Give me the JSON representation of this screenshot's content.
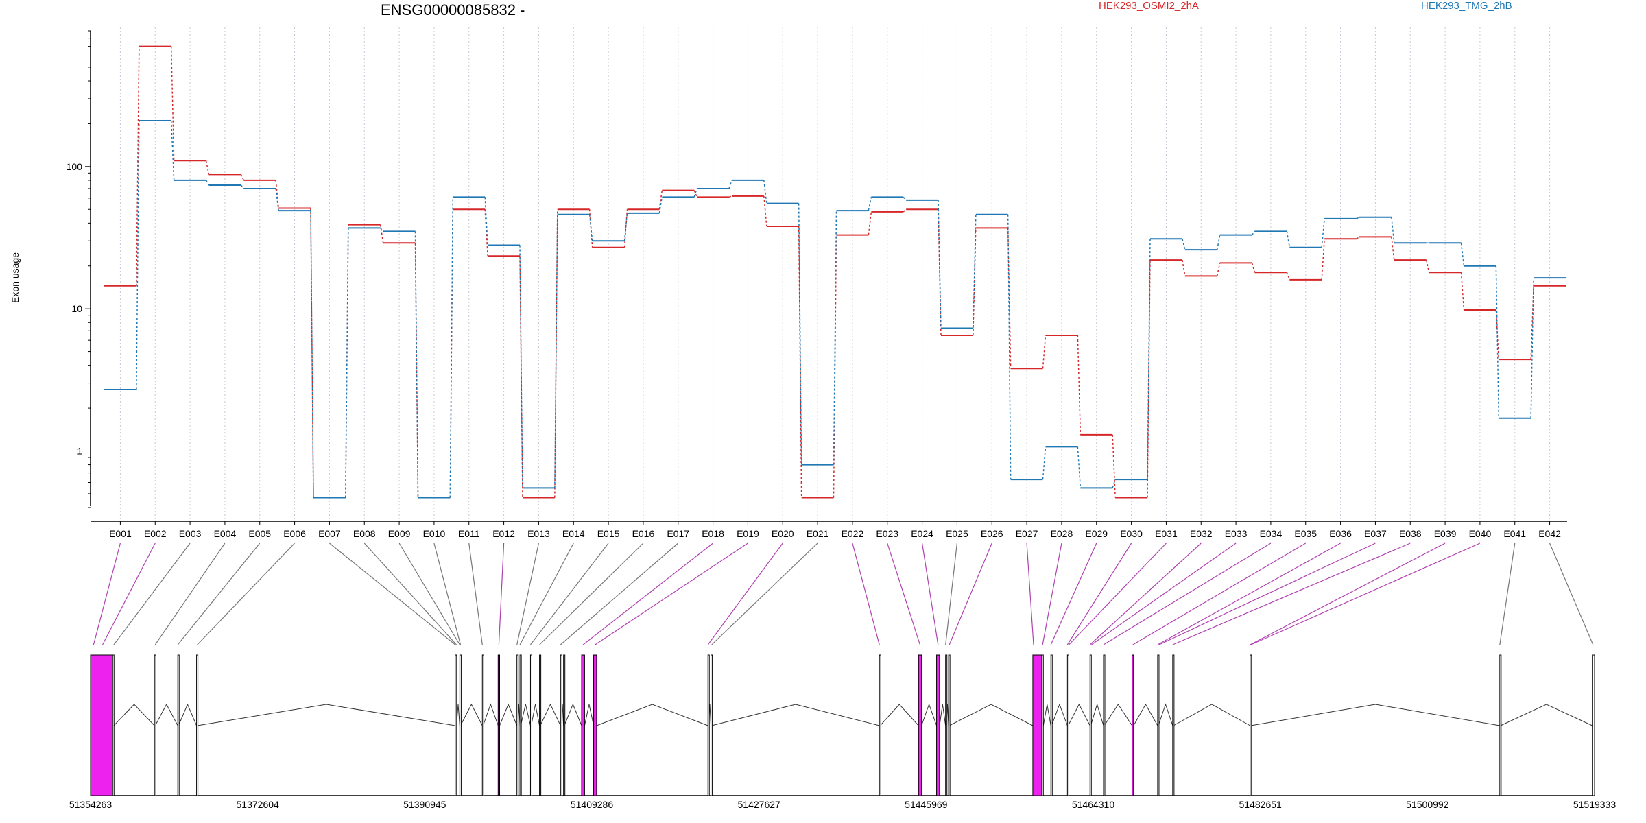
{
  "chart_data": {
    "type": "line",
    "title": "ENSG00000085832 -",
    "ylabel": "Exon usage",
    "yscale": "log",
    "ylim": [
      0.4,
      900
    ],
    "yticks": [
      "1",
      "10",
      "100"
    ],
    "ytick_values": [
      1,
      10,
      100
    ],
    "grid": "vertical dotted per exon",
    "legend_placement": "top",
    "colors": {
      "OSMI2": "#d62728",
      "TMG": "#1f77b4",
      "highlight": "#ee22ee",
      "connector": "#b040b0",
      "gray": "#777777"
    },
    "categories": [
      "E001",
      "E002",
      "E003",
      "E004",
      "E005",
      "E006",
      "E007",
      "E008",
      "E009",
      "E010",
      "E011",
      "E012",
      "E013",
      "E014",
      "E015",
      "E016",
      "E017",
      "E018",
      "E019",
      "E020",
      "E021",
      "E022",
      "E023",
      "E024",
      "E025",
      "E026",
      "E027",
      "E028",
      "E029",
      "E030",
      "E031",
      "E032",
      "E033",
      "E034",
      "E035",
      "E036",
      "E037",
      "E038",
      "E039",
      "E040",
      "E041",
      "E042"
    ],
    "series": [
      {
        "name": "HEK293_OSMI2_2hA",
        "color": "#d62728",
        "values": [
          14.5,
          700,
          110,
          88,
          80,
          51,
          0.47,
          39,
          29,
          0.47,
          50,
          23.5,
          0.47,
          50,
          27,
          50,
          68,
          61,
          62,
          38,
          0.47,
          33,
          48,
          50,
          6.5,
          37,
          3.8,
          6.5,
          1.3,
          0.47,
          22,
          17,
          21,
          18,
          16,
          31,
          32,
          22,
          18,
          9.8,
          4.4,
          14.5
        ]
      },
      {
        "name": "HEK293_TMG_2hB",
        "color": "#1f77b4",
        "values": [
          2.7,
          210,
          80,
          74,
          70,
          49,
          0.47,
          37,
          35,
          0.47,
          61,
          28,
          0.55,
          46,
          30,
          47,
          61,
          70,
          80,
          55,
          0.8,
          49,
          61,
          58,
          7.3,
          46,
          0.63,
          1.07,
          0.55,
          0.63,
          31,
          26,
          33,
          35,
          27,
          43,
          44,
          29,
          29,
          20,
          1.7,
          16.5
        ]
      }
    ],
    "gene_model": {
      "coord_ticks": [
        "51354263",
        "51372604",
        "51390945",
        "51409286",
        "51427627",
        "51445969",
        "51464310",
        "51482651",
        "51500992",
        "51519333"
      ],
      "exons": [
        {
          "start": 0.0,
          "end": 0.0147,
          "highlight": true
        },
        {
          "start": 0.0147,
          "end": 0.0155,
          "highlight": false
        },
        {
          "start": 0.0425,
          "end": 0.043,
          "highlight": false
        },
        {
          "start": 0.058,
          "end": 0.0585,
          "highlight": false
        },
        {
          "start": 0.0705,
          "end": 0.071,
          "highlight": false
        },
        {
          "start": 0.2425,
          "end": 0.2433,
          "highlight": false
        },
        {
          "start": 0.2455,
          "end": 0.246,
          "highlight": false
        },
        {
          "start": 0.2605,
          "end": 0.261,
          "highlight": false
        },
        {
          "start": 0.271,
          "end": 0.272,
          "highlight": true
        },
        {
          "start": 0.2835,
          "end": 0.284,
          "highlight": false
        },
        {
          "start": 0.2855,
          "end": 0.286,
          "highlight": false
        },
        {
          "start": 0.2925,
          "end": 0.293,
          "highlight": false
        },
        {
          "start": 0.2985,
          "end": 0.299,
          "highlight": false
        },
        {
          "start": 0.3125,
          "end": 0.313,
          "highlight": false
        },
        {
          "start": 0.3145,
          "end": 0.315,
          "highlight": false
        },
        {
          "start": 0.3265,
          "end": 0.3285,
          "highlight": true
        },
        {
          "start": 0.3345,
          "end": 0.3365,
          "highlight": true
        },
        {
          "start": 0.4105,
          "end": 0.411,
          "highlight": false
        },
        {
          "start": 0.4125,
          "end": 0.413,
          "highlight": false
        },
        {
          "start": 0.5245,
          "end": 0.525,
          "highlight": false
        },
        {
          "start": 0.5505,
          "end": 0.5525,
          "highlight": true
        },
        {
          "start": 0.5625,
          "end": 0.5645,
          "highlight": true
        },
        {
          "start": 0.5685,
          "end": 0.569,
          "highlight": false
        },
        {
          "start": 0.5705,
          "end": 0.571,
          "highlight": false
        },
        {
          "start": 0.6265,
          "end": 0.6325,
          "highlight": true
        },
        {
          "start": 0.6325,
          "end": 0.6335,
          "highlight": false
        },
        {
          "start": 0.6385,
          "end": 0.639,
          "highlight": false
        },
        {
          "start": 0.6495,
          "end": 0.65,
          "highlight": false
        },
        {
          "start": 0.6645,
          "end": 0.665,
          "highlight": false
        },
        {
          "start": 0.6735,
          "end": 0.674,
          "highlight": false
        },
        {
          "start": 0.6925,
          "end": 0.6935,
          "highlight": true
        },
        {
          "start": 0.7095,
          "end": 0.71,
          "highlight": false
        },
        {
          "start": 0.7195,
          "end": 0.72,
          "highlight": false
        },
        {
          "start": 0.771,
          "end": 0.7715,
          "highlight": false
        },
        {
          "start": 0.937,
          "end": 0.9375,
          "highlight": false
        },
        {
          "start": 0.9985,
          "end": 1.0,
          "highlight": false
        }
      ],
      "links": [
        {
          "exon": "E001",
          "pos": 0.002,
          "highlight": true
        },
        {
          "exon": "E002",
          "pos": 0.008,
          "highlight": true
        },
        {
          "exon": "E003",
          "pos": 0.0155,
          "highlight": false
        },
        {
          "exon": "E004",
          "pos": 0.043,
          "highlight": false
        },
        {
          "exon": "E005",
          "pos": 0.058,
          "highlight": false
        },
        {
          "exon": "E006",
          "pos": 0.071,
          "highlight": false
        },
        {
          "exon": "E007",
          "pos": 0.2425,
          "highlight": false
        },
        {
          "exon": "E008",
          "pos": 0.2433,
          "highlight": false
        },
        {
          "exon": "E009",
          "pos": 0.2455,
          "highlight": false
        },
        {
          "exon": "E010",
          "pos": 0.246,
          "highlight": false
        },
        {
          "exon": "E011",
          "pos": 0.2605,
          "highlight": false
        },
        {
          "exon": "E012",
          "pos": 0.2715,
          "highlight": true
        },
        {
          "exon": "E013",
          "pos": 0.2835,
          "highlight": false
        },
        {
          "exon": "E014",
          "pos": 0.2855,
          "highlight": false
        },
        {
          "exon": "E015",
          "pos": 0.2925,
          "highlight": false
        },
        {
          "exon": "E016",
          "pos": 0.2985,
          "highlight": false
        },
        {
          "exon": "E017",
          "pos": 0.3125,
          "highlight": false
        },
        {
          "exon": "E018",
          "pos": 0.3275,
          "highlight": true
        },
        {
          "exon": "E019",
          "pos": 0.3355,
          "highlight": true
        },
        {
          "exon": "E020",
          "pos": 0.4105,
          "highlight": true
        },
        {
          "exon": "E021",
          "pos": 0.413,
          "highlight": false
        },
        {
          "exon": "E022",
          "pos": 0.5245,
          "highlight": true
        },
        {
          "exon": "E023",
          "pos": 0.5515,
          "highlight": true
        },
        {
          "exon": "E024",
          "pos": 0.5635,
          "highlight": true
        },
        {
          "exon": "E025",
          "pos": 0.5685,
          "highlight": false
        },
        {
          "exon": "E026",
          "pos": 0.571,
          "highlight": true
        },
        {
          "exon": "E027",
          "pos": 0.627,
          "highlight": true
        },
        {
          "exon": "E028",
          "pos": 0.633,
          "highlight": true
        },
        {
          "exon": "E029",
          "pos": 0.6385,
          "highlight": true
        },
        {
          "exon": "E030",
          "pos": 0.6495,
          "highlight": true
        },
        {
          "exon": "E031",
          "pos": 0.6505,
          "highlight": true
        },
        {
          "exon": "E032",
          "pos": 0.6645,
          "highlight": true
        },
        {
          "exon": "E033",
          "pos": 0.6655,
          "highlight": true
        },
        {
          "exon": "E034",
          "pos": 0.6735,
          "highlight": true
        },
        {
          "exon": "E035",
          "pos": 0.693,
          "highlight": true
        },
        {
          "exon": "E036",
          "pos": 0.7095,
          "highlight": true
        },
        {
          "exon": "E037",
          "pos": 0.7105,
          "highlight": true
        },
        {
          "exon": "E038",
          "pos": 0.7195,
          "highlight": true
        },
        {
          "exon": "E039",
          "pos": 0.771,
          "highlight": true
        },
        {
          "exon": "E040",
          "pos": 0.7715,
          "highlight": true
        },
        {
          "exon": "E041",
          "pos": 0.937,
          "highlight": false
        },
        {
          "exon": "E042",
          "pos": 0.999,
          "highlight": false
        }
      ]
    }
  }
}
